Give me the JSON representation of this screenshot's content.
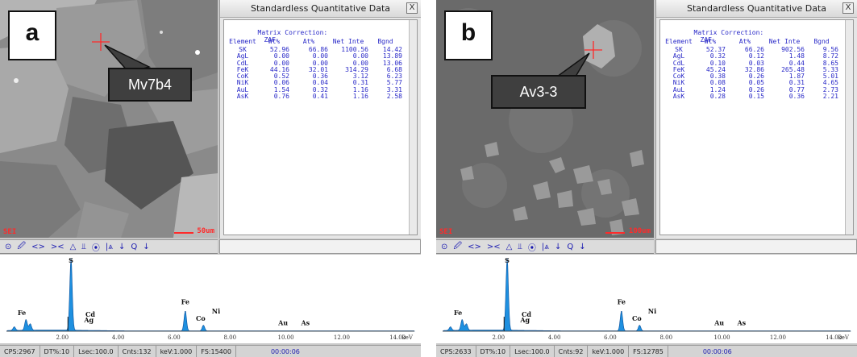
{
  "panels": [
    {
      "letter": "a",
      "callout": "Mv7b4",
      "sem_label": "SEI",
      "scale_label": "50um",
      "window_title": "Standardless Quantitative Data",
      "close_label": "X",
      "matrix_label": "Matrix Correction:",
      "matrix_value": "ZAF",
      "headers": [
        "Element",
        "Wt%",
        "At%",
        "Net Inte",
        "Bgnd"
      ],
      "rows": [
        [
          "SK",
          "52.96",
          "66.86",
          "1100.56",
          "14.42"
        ],
        [
          "AgL",
          "0.00",
          "0.00",
          "0.00",
          "13.89"
        ],
        [
          "CdL",
          "0.00",
          "0.00",
          "0.00",
          "13.06"
        ],
        [
          "FeK",
          "44.16",
          "32.01",
          "314.29",
          "6.68"
        ],
        [
          "CoK",
          "0.52",
          "0.36",
          "3.12",
          "6.23"
        ],
        [
          "NiK",
          "0.06",
          "0.04",
          "0.31",
          "5.77"
        ],
        [
          "AuL",
          "1.54",
          "0.32",
          "1.16",
          "3.31"
        ],
        [
          "AsK",
          "0.76",
          "0.41",
          "1.16",
          "2.58"
        ]
      ],
      "status": {
        "cps": "CPS:2967",
        "dt": "DT%:10",
        "lsec": "Lsec:100.0",
        "cnts": "Cnts:132",
        "kev": "keV:1.000",
        "fs": "FS:15400",
        "time": "00:00:06"
      }
    },
    {
      "letter": "b",
      "callout": "Av3-3",
      "sem_label": "SEI",
      "scale_label": "100um",
      "window_title": "Standardless Quantitative Data",
      "close_label": "X",
      "matrix_label": "Matrix Correction:",
      "matrix_value": "ZAF",
      "headers": [
        "Element",
        "Wt%",
        "At%",
        "Net Inte",
        "Bgnd"
      ],
      "rows": [
        [
          "SK",
          "52.37",
          "66.26",
          "902.56",
          "9.56"
        ],
        [
          "AgL",
          "0.32",
          "0.12",
          "1.48",
          "8.72"
        ],
        [
          "CdL",
          "0.10",
          "0.03",
          "0.44",
          "8.65"
        ],
        [
          "FeK",
          "45.24",
          "32.86",
          "265.48",
          "5.33"
        ],
        [
          "CoK",
          "0.38",
          "0.26",
          "1.87",
          "5.01"
        ],
        [
          "NiK",
          "0.08",
          "0.05",
          "0.31",
          "4.65"
        ],
        [
          "AuL",
          "1.24",
          "0.26",
          "0.77",
          "2.73"
        ],
        [
          "AsK",
          "0.28",
          "0.15",
          "0.36",
          "2.21"
        ]
      ],
      "status": {
        "cps": "CPS:2633",
        "dt": "DT%:10",
        "lsec": "Lsec:100.0",
        "cnts": "Cnts:92",
        "kev": "keV:1.000",
        "fs": "FS:12785",
        "time": "00:00:06"
      }
    }
  ],
  "toolbar_glyphs": [
    "&#x2299;",
    "&#x1F589;",
    "&lt;&gt;",
    "&gt;&lt;",
    "&#x25B3;",
    "&#x2AEB;",
    "&#x29BF;",
    "|&#x2A53;",
    "&#x2193;",
    "Q",
    "&#x2193;"
  ],
  "spectrum": {
    "x_ticks": [
      "2.00",
      "4.00",
      "6.00",
      "8.00",
      "10.00",
      "12.00",
      "14.00"
    ],
    "x_unit": "keV",
    "peak_labels": [
      "S",
      "Fe",
      "Cd",
      "Ag",
      "Fe",
      "Co",
      "Ni",
      "Au",
      "As"
    ],
    "colors": {
      "fill": "#1e90e0",
      "stroke": "#0a4f9a"
    }
  }
}
